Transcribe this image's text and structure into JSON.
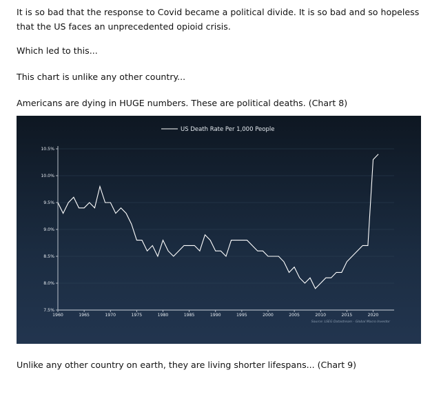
{
  "article": {
    "paragraph_1": "It is so bad that the response to Covid became a political divide. It is so bad and so hopeless that the US faces an unprecedented opioid crisis.",
    "paragraph_2": "Which led to this...",
    "paragraph_3": "This chart is unlike any other country...",
    "paragraph_4": "Americans are dying in HUGE numbers. These are political deaths. (Chart 8)",
    "paragraph_5": "Unlike any other country on earth, they are living shorter lifespans... (Chart 9)"
  },
  "chart_data": {
    "type": "line",
    "legend_label": "US Death Rate Per 1,000 People",
    "source": "Source: LSEG Datastream - Global Macro Investor",
    "xlim": [
      1960,
      2024
    ],
    "ylim": [
      7.5,
      10.5
    ],
    "x_ticks": [
      1960,
      1965,
      1970,
      1975,
      1980,
      1985,
      1990,
      1995,
      2000,
      2005,
      2010,
      2015,
      2020
    ],
    "y_ticks": [
      {
        "value": 7.5,
        "label": "7.5%"
      },
      {
        "value": 8.0,
        "label": "8.0%"
      },
      {
        "value": 8.5,
        "label": "8.5%"
      },
      {
        "value": 9.0,
        "label": "9.0%"
      },
      {
        "value": 9.5,
        "label": "9.5%"
      },
      {
        "value": 10.0,
        "label": "10.0%"
      },
      {
        "value": 10.5,
        "label": "10.5%"
      }
    ],
    "colors": {
      "line": "#ffffff",
      "axis": "#d0d6de",
      "grid": "#2f4257",
      "text": "#e6ebf0",
      "source": "#8ea0b4"
    },
    "series": [
      {
        "x": [
          1960,
          1961,
          1962,
          1963,
          1964,
          1965,
          1966,
          1967,
          1968,
          1969,
          1970,
          1971,
          1972,
          1973,
          1974,
          1975,
          1976,
          1977,
          1978,
          1979,
          1980,
          1981,
          1982,
          1983,
          1984,
          1985,
          1986,
          1987,
          1988,
          1989,
          1990,
          1991,
          1992,
          1993,
          1994,
          1995,
          1996,
          1997,
          1998,
          1999,
          2000,
          2001,
          2002,
          2003,
          2004,
          2005,
          2006,
          2007,
          2008,
          2009,
          2010,
          2011,
          2012,
          2013,
          2014,
          2015,
          2016,
          2017,
          2018,
          2019,
          2020,
          2021
        ],
        "values": [
          9.5,
          9.3,
          9.5,
          9.6,
          9.4,
          9.4,
          9.5,
          9.4,
          9.8,
          9.5,
          9.5,
          9.3,
          9.4,
          9.3,
          9.1,
          8.8,
          8.8,
          8.6,
          8.7,
          8.5,
          8.8,
          8.6,
          8.5,
          8.6,
          8.7,
          8.7,
          8.7,
          8.6,
          8.9,
          8.8,
          8.6,
          8.6,
          8.5,
          8.8,
          8.8,
          8.8,
          8.8,
          8.7,
          8.6,
          8.6,
          8.5,
          8.5,
          8.5,
          8.4,
          8.2,
          8.3,
          8.1,
          8.0,
          8.1,
          7.9,
          8.0,
          8.1,
          8.1,
          8.2,
          8.2,
          8.4,
          8.5,
          8.6,
          8.7,
          8.7,
          10.3,
          10.4
        ]
      }
    ]
  }
}
